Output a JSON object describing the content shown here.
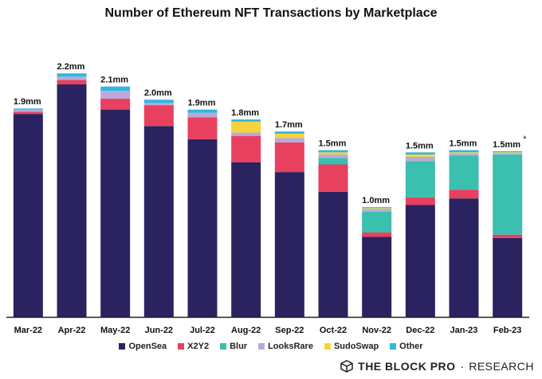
{
  "chart_data": {
    "type": "bar",
    "stacked": true,
    "title": "Number of Ethereum NFT Transactions by Marketplace",
    "xlabel": "",
    "ylabel": "",
    "ylim": [
      0,
      2.25
    ],
    "categories": [
      "Mar-22",
      "Apr-22",
      "May-22",
      "Jun-22",
      "Jul-22",
      "Aug-22",
      "Sep-22",
      "Oct-22",
      "Nov-22",
      "Dec-22",
      "Jan-23",
      "Feb-23"
    ],
    "totals_labels": [
      "1.9mm",
      "2.2mm",
      "2.1mm",
      "2.0mm",
      "1.9mm",
      "1.8mm",
      "1.7mm",
      "1.5mm",
      "1.0mm",
      "1.5mm",
      "1.5mm",
      "1.5mm"
    ],
    "annotation": {
      "category": "Feb-23",
      "text": "*"
    },
    "series": [
      {
        "name": "OpenSea",
        "color": "#2b2360",
        "values": [
          1.85,
          2.12,
          1.89,
          1.74,
          1.62,
          1.41,
          1.32,
          1.14,
          0.73,
          1.02,
          1.08,
          0.72
        ]
      },
      {
        "name": "X2Y2",
        "color": "#e8405f",
        "values": [
          0.02,
          0.04,
          0.1,
          0.19,
          0.2,
          0.24,
          0.27,
          0.25,
          0.04,
          0.07,
          0.08,
          0.03
        ]
      },
      {
        "name": "Blur",
        "color": "#3bbfae",
        "values": [
          0.0,
          0.0,
          0.0,
          0.0,
          0.0,
          0.0,
          0.0,
          0.06,
          0.19,
          0.33,
          0.31,
          0.73
        ]
      },
      {
        "name": "LooksRare",
        "color": "#b9a9d9",
        "values": [
          0.02,
          0.03,
          0.07,
          0.02,
          0.04,
          0.03,
          0.04,
          0.03,
          0.02,
          0.04,
          0.02,
          0.01
        ]
      },
      {
        "name": "SudoSwap",
        "color": "#f6d33c",
        "values": [
          0.0,
          0.0,
          0.0,
          0.0,
          0.0,
          0.1,
          0.04,
          0.02,
          0.01,
          0.02,
          0.01,
          0.01
        ]
      },
      {
        "name": "Other",
        "color": "#34b6dd",
        "values": [
          0.01,
          0.03,
          0.04,
          0.03,
          0.03,
          0.02,
          0.02,
          0.02,
          0.01,
          0.02,
          0.02,
          0.01
        ]
      }
    ]
  },
  "legend": {
    "items": [
      {
        "label": "OpenSea",
        "color": "#2b2360"
      },
      {
        "label": "X2Y2",
        "color": "#e8405f"
      },
      {
        "label": "Blur",
        "color": "#3bbfae"
      },
      {
        "label": "LooksRare",
        "color": "#b9a9d9"
      },
      {
        "label": "SudoSwap",
        "color": "#f6d33c"
      },
      {
        "label": "Other",
        "color": "#34b6dd"
      }
    ]
  },
  "footer": {
    "brand": "THE BLOCK PRO",
    "separator": "·",
    "research": "RESEARCH",
    "logo_icon": "the-block-cube-icon"
  }
}
